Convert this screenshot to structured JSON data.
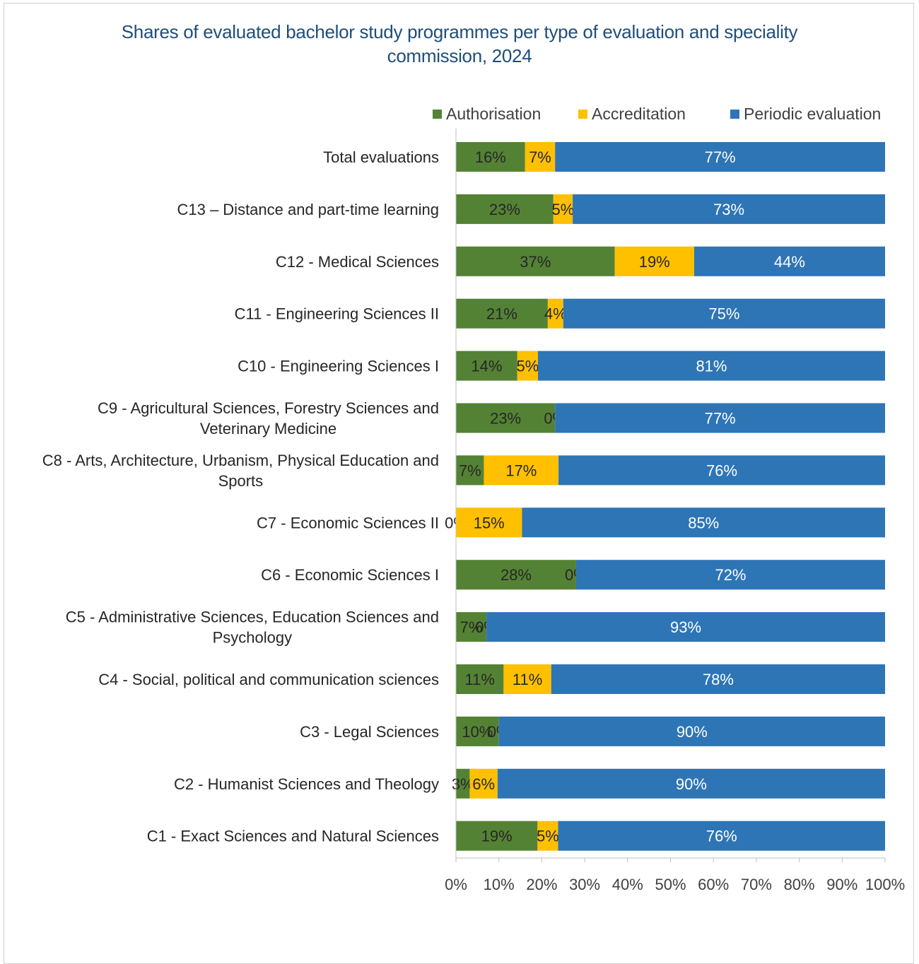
{
  "chart_data": {
    "type": "bar",
    "orientation": "horizontal-stacked-100",
    "title": "Shares of evaluated bachelor study programmes per type of evaluation and speciality commission, 2024",
    "xlim": [
      0,
      100
    ],
    "x_ticks": [
      "0%",
      "10%",
      "20%",
      "30%",
      "40%",
      "50%",
      "60%",
      "70%",
      "80%",
      "90%",
      "100%"
    ],
    "grid": false,
    "legend_position": "top-right",
    "categories": [
      "Total evaluations",
      "C13 – Distance and part-time learning",
      "C12 - Medical Sciences",
      "C11 - Engineering Sciences II",
      "C10 - Engineering Sciences I",
      "C9 - Agricultural Sciences, Forestry Sciences and Veterinary Medicine",
      "C8 - Arts, Architecture, Urbanism, Physical Education and Sports",
      "C7 - Economic Sciences II",
      "C6 - Economic Sciences I",
      "C5 - Administrative Sciences, Education Sciences and Psychology",
      "C4 - Social, political and communication sciences",
      "C3 - Legal Sciences",
      "C2 - Humanist Sciences and Theology",
      "C1 - Exact Sciences and Natural Sciences"
    ],
    "category_lines": [
      [
        "Total evaluations"
      ],
      [
        "C13 – Distance and part-time learning"
      ],
      [
        "C12 - Medical Sciences"
      ],
      [
        "C11 - Engineering Sciences II"
      ],
      [
        "C10 - Engineering Sciences I"
      ],
      [
        "C9 - Agricultural Sciences, Forestry Sciences and",
        "Veterinary Medicine"
      ],
      [
        "C8 - Arts, Architecture, Urbanism, Physical Education and",
        "Sports"
      ],
      [
        "C7 - Economic Sciences II"
      ],
      [
        "C6 - Economic Sciences I"
      ],
      [
        "C5 - Administrative Sciences, Education Sciences and",
        "Psychology"
      ],
      [
        "C4 - Social, political and communication sciences"
      ],
      [
        "C3 - Legal Sciences"
      ],
      [
        "C2 - Humanist Sciences and Theology"
      ],
      [
        "C1 - Exact Sciences and Natural Sciences"
      ]
    ],
    "series": [
      {
        "name": "Authorisation",
        "color": "#548235",
        "values": [
          16.1,
          22.7,
          37.0,
          21.4,
          14.3,
          23.1,
          6.5,
          0,
          28.0,
          7.1,
          11.1,
          10.0,
          3.2,
          19.0
        ],
        "labels": [
          "16%",
          "23%",
          "37%",
          "21%",
          "14%",
          "23%",
          "7%",
          "0%",
          "28%",
          "7%",
          "11%",
          "10%",
          "3%",
          "19%"
        ]
      },
      {
        "name": "Accreditation",
        "color": "#ffc000",
        "values": [
          7.0,
          4.5,
          18.5,
          3.6,
          4.8,
          0,
          17.4,
          15.4,
          0,
          0,
          11.1,
          0,
          6.5,
          4.8
        ],
        "labels": [
          "7%",
          "5%",
          "19%",
          "4%",
          "5%",
          "0%",
          "17%",
          "15%",
          "0%",
          "0%",
          "11%",
          "0%",
          "6%",
          "5%"
        ]
      },
      {
        "name": "Periodic evaluation",
        "color": "#2e75b6",
        "values": [
          76.9,
          72.8,
          44.5,
          75.0,
          80.9,
          76.9,
          76.1,
          84.6,
          72.0,
          92.9,
          77.8,
          90.0,
          90.3,
          76.2
        ],
        "labels": [
          "77%",
          "73%",
          "44%",
          "75%",
          "81%",
          "77%",
          "76%",
          "85%",
          "72%",
          "93%",
          "78%",
          "90%",
          "90%",
          "76%"
        ]
      }
    ]
  }
}
